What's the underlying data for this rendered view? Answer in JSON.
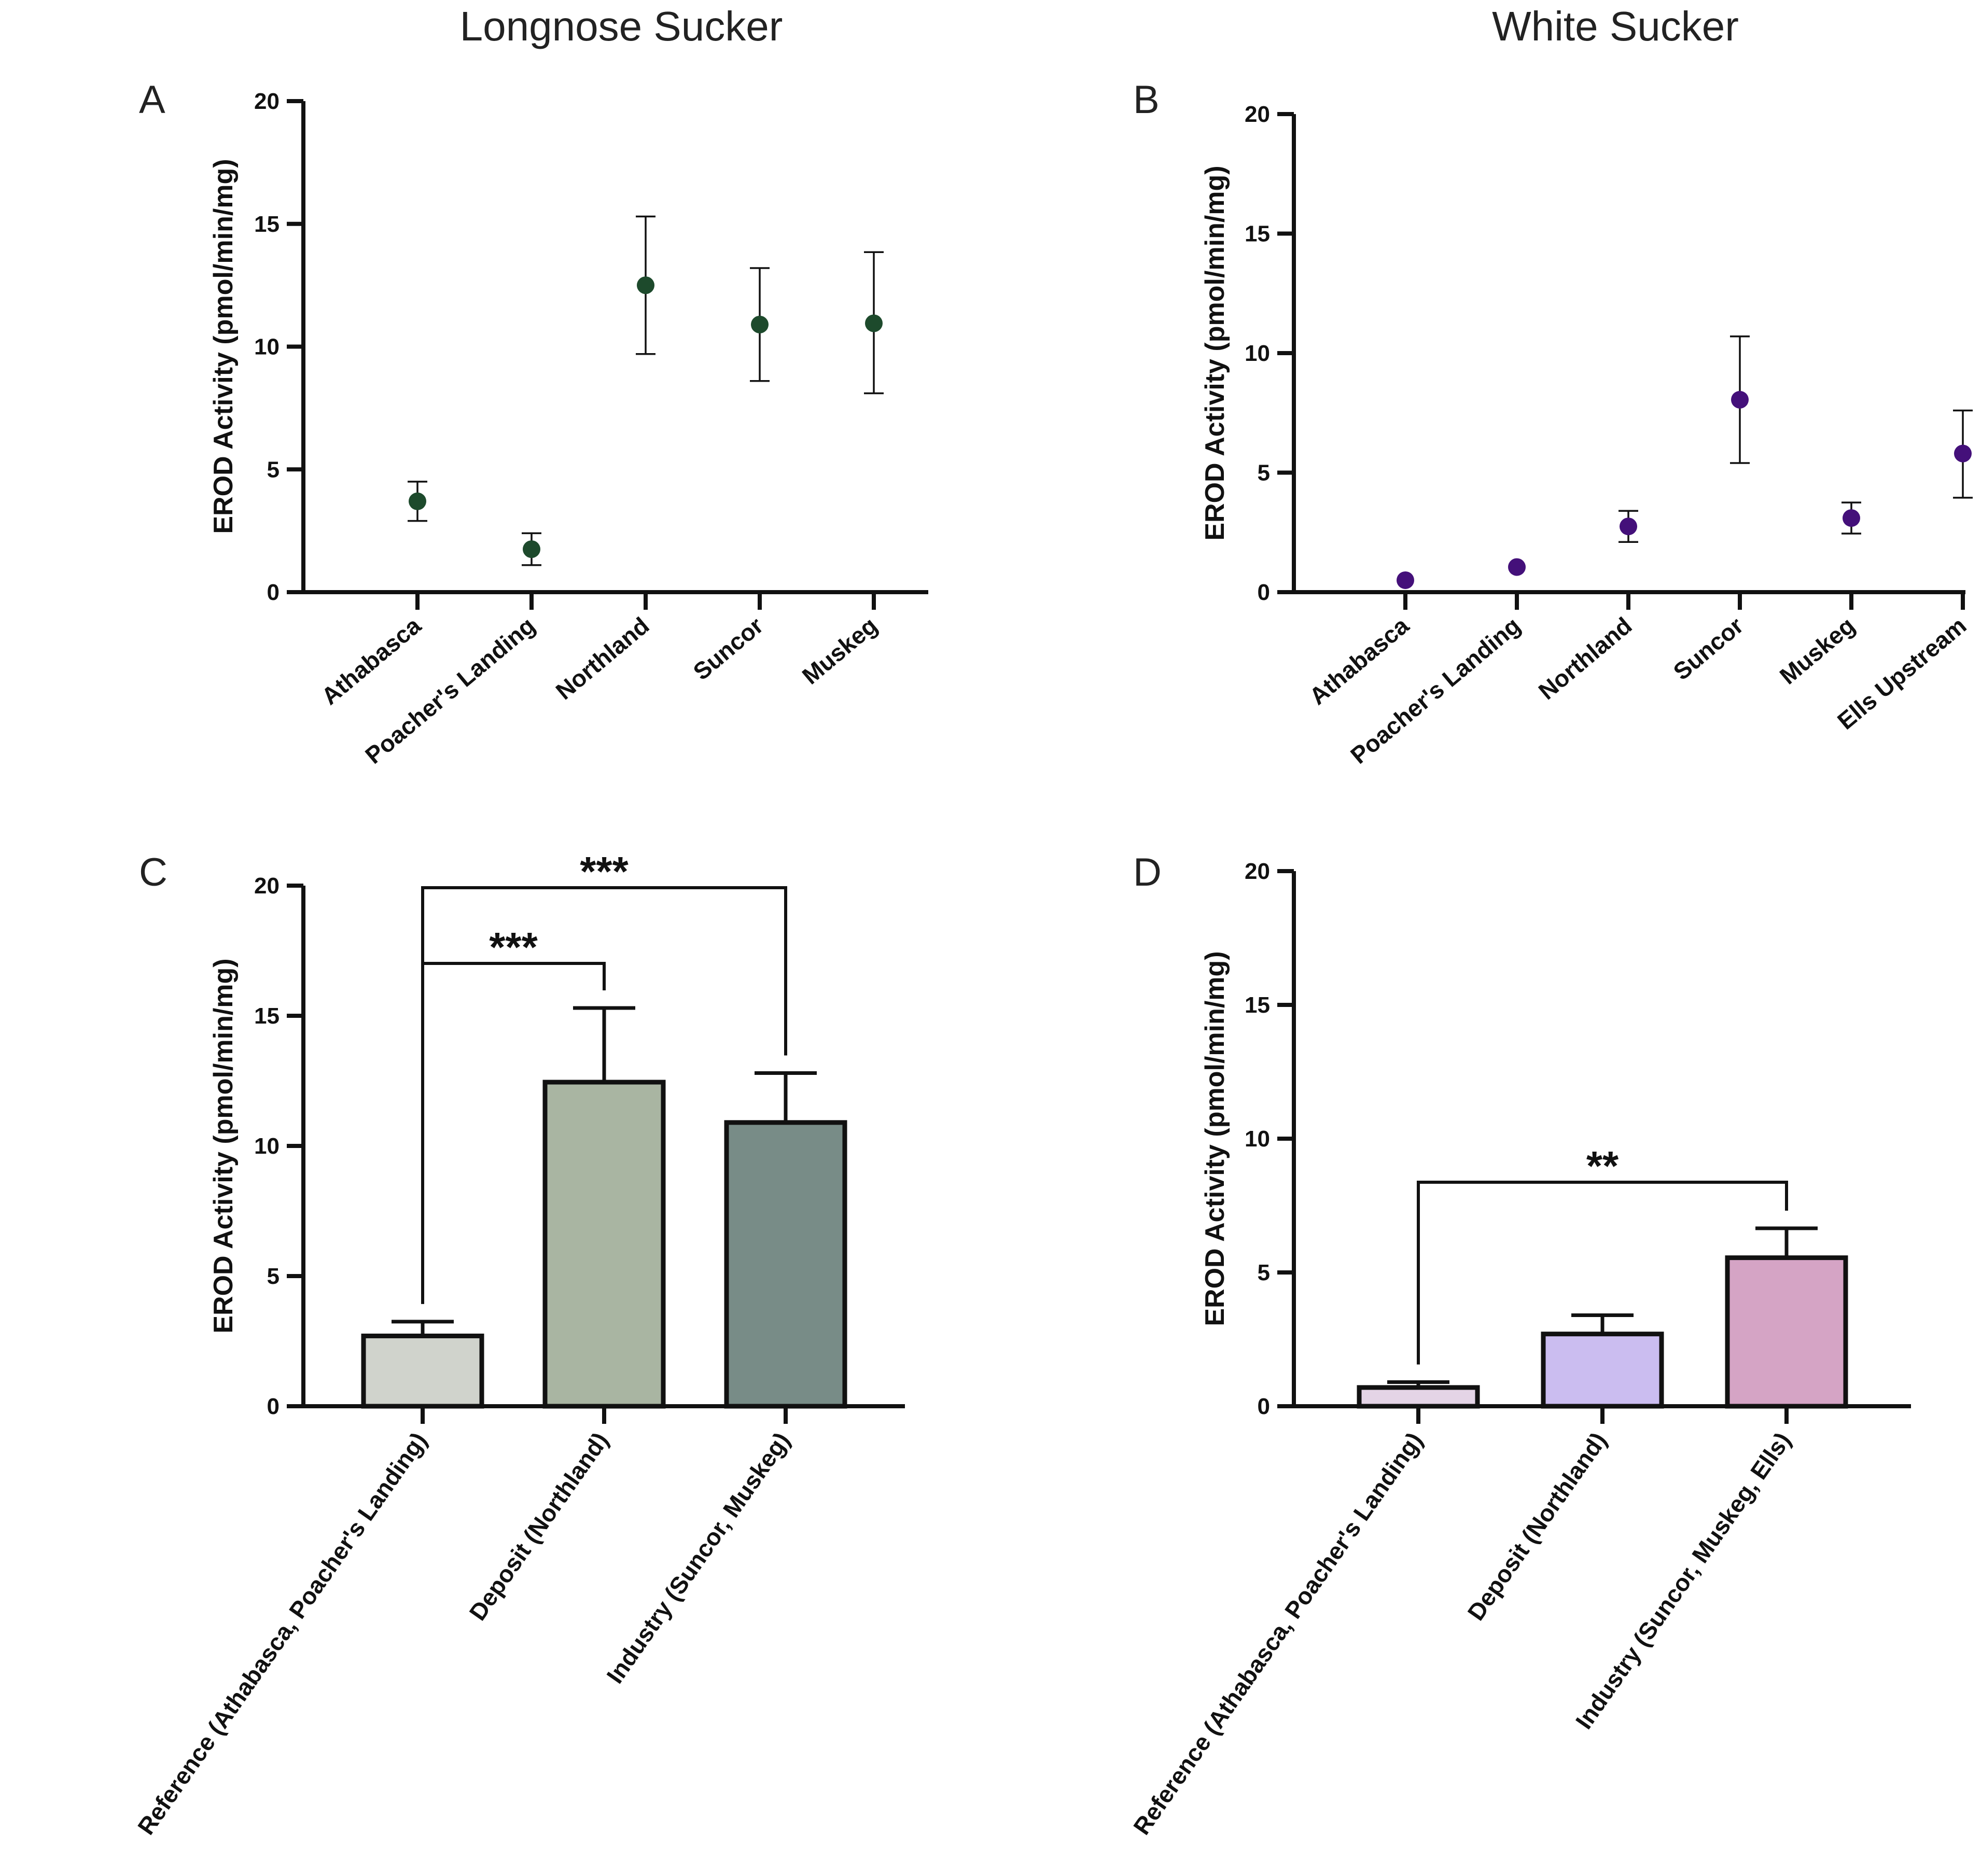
{
  "column_titles": [
    "Longnose Sucker",
    "White Sucker"
  ],
  "axis_title": "EROD Activity (pmol/min/mg)",
  "chart_data": [
    {
      "panel": "A",
      "type": "scatter",
      "title": "Longnose Sucker",
      "ylabel": "EROD Activity (pmol/min/mg)",
      "ylim": [
        0,
        20
      ],
      "yticks": [
        0,
        5,
        10,
        15,
        20
      ],
      "categories": [
        "Athabasca",
        "Poacher's Landing",
        "Northland",
        "Suncor",
        "Muskeg"
      ],
      "values": [
        3.7,
        1.75,
        12.5,
        10.9,
        10.95
      ],
      "error_low": [
        2.9,
        1.1,
        9.7,
        8.6,
        8.1
      ],
      "error_high": [
        4.5,
        2.4,
        15.3,
        13.2,
        13.85
      ],
      "color": "#1d4a2c"
    },
    {
      "panel": "B",
      "type": "scatter",
      "title": "White Sucker",
      "ylabel": "EROD Activity (pmol/min/mg)",
      "ylim": [
        0,
        20
      ],
      "yticks": [
        0,
        5,
        10,
        15,
        20
      ],
      "categories": [
        "Athabasca",
        "Poacher's Landing",
        "Northland",
        "Suncor",
        "Muskeg",
        "Ells Upstream"
      ],
      "values": [
        0.5,
        1.05,
        2.75,
        8.05,
        3.1,
        5.8
      ],
      "error_low": [
        null,
        null,
        2.1,
        5.4,
        2.45,
        3.95
      ],
      "error_high": [
        null,
        null,
        3.4,
        10.7,
        3.75,
        7.6
      ],
      "color": "#44107a"
    },
    {
      "panel": "C",
      "type": "bar",
      "ylabel": "EROD Activity (pmol/min/mg)",
      "ylim": [
        0,
        20
      ],
      "yticks": [
        0,
        5,
        10,
        15,
        20
      ],
      "categories": [
        "Reference (Athabasca, Poacher's Landing)",
        "Deposit (Northland)",
        "Industry (Suncor, Muskeg)"
      ],
      "values": [
        2.7,
        12.45,
        10.9
      ],
      "error_high": [
        3.25,
        15.3,
        12.8
      ],
      "colors": [
        "#d0d3cc",
        "#a9b5a2",
        "#788c87"
      ],
      "significance": [
        {
          "from": 0,
          "to": 1,
          "label": "***"
        },
        {
          "from": 0,
          "to": 2,
          "label": "***"
        }
      ]
    },
    {
      "panel": "D",
      "type": "bar",
      "ylabel": "EROD Activity (pmol/min/mg)",
      "ylim": [
        0,
        20
      ],
      "yticks": [
        0,
        5,
        10,
        15,
        20
      ],
      "categories": [
        "Reference (Athabasca, Poacher's Landing)",
        "Deposit (Northland)",
        "Industry (Suncor, Muskeg, Ells)"
      ],
      "values": [
        0.7,
        2.7,
        5.55
      ],
      "error_high": [
        0.9,
        3.4,
        6.65
      ],
      "colors": [
        "#e4d4e6",
        "#cbbdf0",
        "#d5a4c5"
      ],
      "significance": [
        {
          "from": 0,
          "to": 2,
          "label": "**"
        }
      ]
    }
  ]
}
